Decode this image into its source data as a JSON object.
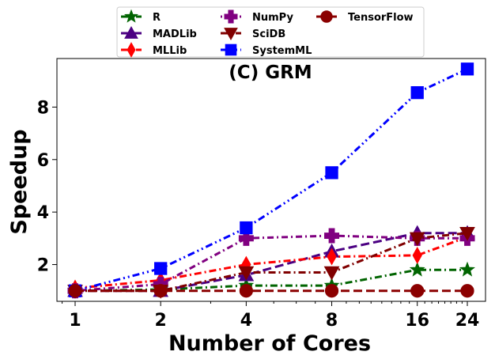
{
  "chart_data": {
    "type": "line",
    "title": "(C) GRM",
    "xlabel": "Number of Cores",
    "ylabel": "Speedup",
    "x_scale": "log2",
    "x": [
      1,
      2,
      4,
      8,
      16,
      24
    ],
    "xticks": [
      "1",
      "2",
      "4",
      "8",
      "16",
      "24"
    ],
    "yticks": [
      "2",
      "4",
      "6",
      "8"
    ],
    "ylim": [
      0.6,
      9.85
    ],
    "grid": false,
    "legend_position": "top-center, above plot, 3 columns",
    "series": [
      {
        "name": "R",
        "values": [
          1.0,
          1.05,
          1.2,
          1.2,
          1.8,
          1.8
        ],
        "color": "#006400",
        "marker": "star",
        "dash": "dashdot"
      },
      {
        "name": "MADLib",
        "values": [
          1.0,
          1.0,
          1.6,
          2.5,
          3.2,
          3.2
        ],
        "color": "#4b0082",
        "marker": "triangle-up",
        "dash": "dashed"
      },
      {
        "name": "MLLib",
        "values": [
          1.1,
          1.4,
          2.0,
          2.3,
          2.35,
          3.05
        ],
        "color": "#ff0000",
        "marker": "thin-diamond",
        "dash": "dashdot"
      },
      {
        "name": "NumPy",
        "values": [
          1.0,
          1.25,
          3.0,
          3.1,
          3.0,
          3.0
        ],
        "color": "#800080",
        "marker": "plus-filled",
        "dash": "dotted-dash"
      },
      {
        "name": "SciDB",
        "values": [
          1.0,
          1.0,
          1.7,
          1.7,
          3.0,
          3.2
        ],
        "color": "#800000",
        "marker": "triangle-down",
        "dash": "dashdot"
      },
      {
        "name": "SystemML",
        "values": [
          1.0,
          1.85,
          3.4,
          5.5,
          8.55,
          9.45
        ],
        "color": "#0000ff",
        "marker": "square",
        "dash": "dashdotdot"
      },
      {
        "name": "TensorFlow",
        "values": [
          1.0,
          1.0,
          1.0,
          1.0,
          1.0,
          1.0
        ],
        "color": "#8b0000",
        "marker": "circle",
        "dash": "dashed"
      }
    ]
  }
}
